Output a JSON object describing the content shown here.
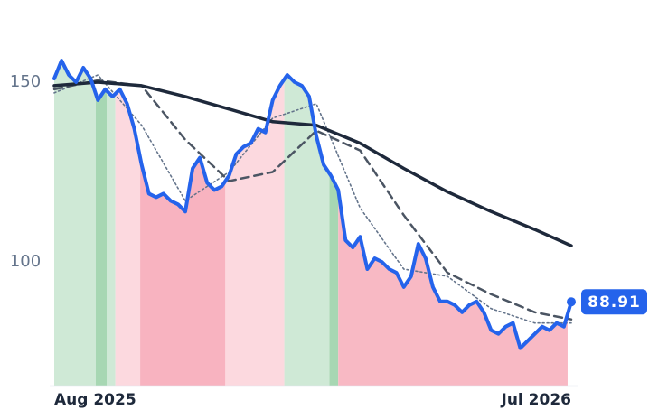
{
  "chart_data": {
    "type": "line",
    "xlim": [
      0,
      71
    ],
    "xticks": [
      {
        "value": 0,
        "label": "Aug 2025"
      },
      {
        "value": 71,
        "label": "Jul 2026"
      }
    ],
    "ylim": [
      65.6,
      162.8
    ],
    "yticks": [
      100,
      150
    ],
    "series": [
      {
        "color": "#2563eb",
        "style": "solid",
        "x": [
          0,
          1,
          2,
          3,
          4,
          5,
          6,
          7,
          8,
          9,
          10,
          11,
          12,
          13,
          14,
          15,
          16,
          17,
          18,
          19,
          20,
          21,
          22,
          23,
          24,
          25,
          26,
          27,
          28,
          29,
          30,
          31,
          32,
          33,
          34,
          35,
          36,
          37,
          38,
          39,
          40,
          41,
          42,
          43,
          44,
          45,
          46,
          47,
          48,
          49,
          50,
          51,
          52,
          53,
          54,
          55,
          56,
          57,
          58,
          59,
          60,
          61,
          62,
          63,
          64,
          65,
          66,
          67,
          68,
          69,
          70,
          71
        ],
        "values": [
          151,
          156,
          152,
          150,
          154,
          151,
          145,
          148,
          146,
          148,
          144,
          137,
          127,
          119,
          118,
          119,
          117,
          116,
          114,
          126,
          129,
          122,
          120,
          121,
          124,
          130,
          132,
          133,
          137,
          136,
          145,
          149,
          152,
          150,
          149,
          146,
          135,
          127,
          124,
          120,
          106,
          104,
          107,
          98,
          101,
          100,
          98,
          97,
          93,
          96,
          105,
          101,
          93,
          89,
          89,
          88,
          86,
          88,
          89,
          86,
          81,
          80,
          82,
          83,
          76,
          78,
          80,
          82,
          81,
          83,
          82,
          88.91
        ]
      },
      {
        "color": "#1e293b",
        "style": "solid",
        "x": [
          0,
          6,
          12,
          18,
          24,
          30,
          36,
          42,
          48,
          54,
          60,
          66,
          71
        ],
        "values": [
          149,
          150,
          149,
          146,
          142.5,
          139,
          138,
          133,
          126,
          119.5,
          114,
          109,
          104.5
        ]
      },
      {
        "color": "#4b5563",
        "style": "dashed",
        "x": [
          0,
          6,
          12,
          18,
          24,
          30,
          36,
          42,
          48,
          54,
          60,
          66,
          71
        ],
        "values": [
          148,
          150.5,
          149,
          134,
          122.5,
          125,
          136.5,
          131,
          113,
          97,
          91,
          86,
          84
        ]
      },
      {
        "color": "#64748b",
        "style": "dotted",
        "x": [
          0,
          6,
          12,
          18,
          24,
          30,
          36,
          42,
          48,
          54,
          60,
          66,
          71
        ],
        "values": [
          147,
          152,
          138,
          117,
          125,
          140,
          144,
          115,
          98,
          96,
          87,
          83,
          83
        ]
      }
    ],
    "shading": [
      {
        "x0": 0,
        "x1": 5.7,
        "color": "#cfe9d6"
      },
      {
        "x0": 5.7,
        "x1": 7.2,
        "color": "#a7d7b3"
      },
      {
        "x0": 7.2,
        "x1": 8.4,
        "color": "#cfe9d6"
      },
      {
        "x0": 8.4,
        "x1": 11.8,
        "color": "#fcd9df"
      },
      {
        "x0": 11.8,
        "x1": 23.5,
        "color": "#f8b3c0"
      },
      {
        "x0": 23.5,
        "x1": 31.6,
        "color": "#fcd9df"
      },
      {
        "x0": 31.6,
        "x1": 37.8,
        "color": "#cfe9d6"
      },
      {
        "x0": 37.8,
        "x1": 39.0,
        "color": "#a7d7b3"
      },
      {
        "x0": 39.0,
        "x1": 70.5,
        "color": "#f8b9c4"
      }
    ]
  }
}
